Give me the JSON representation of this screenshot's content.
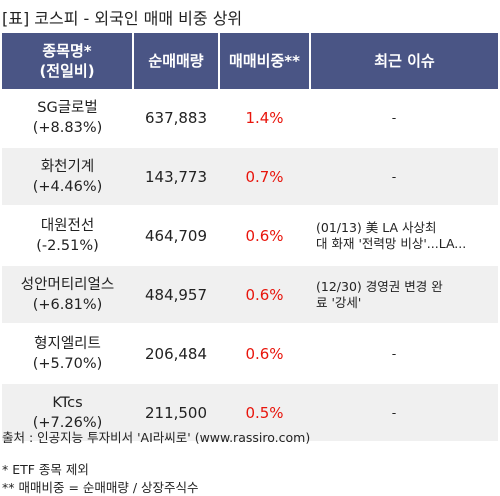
{
  "title": "[표] 코스피 - 외국인 매매 비중 상위",
  "headers": {
    "name_line1": "종목명*",
    "name_line2": "(전일비)",
    "qty": "순매매량",
    "ratio": "매매비중**",
    "issue": "최근 이슈"
  },
  "rows": [
    {
      "name": "SG글로벌",
      "change": "(+8.83%)",
      "qty": "637,883",
      "ratio": "1.4%",
      "issue_line1": "-",
      "issue_line2": ""
    },
    {
      "name": "화천기계",
      "change": "(+4.46%)",
      "qty": "143,773",
      "ratio": "0.7%",
      "issue_line1": "-",
      "issue_line2": ""
    },
    {
      "name": "대원전선",
      "change": "(-2.51%)",
      "qty": "464,709",
      "ratio": "0.6%",
      "issue_line1": "(01/13) 美 LA 사상최",
      "issue_line2": "대 화재 '전력망 비상'...LA..."
    },
    {
      "name": "성안머티리얼스",
      "change": "(+6.81%)",
      "qty": "484,957",
      "ratio": "0.6%",
      "issue_line1": "(12/30) 경영권 변경 완",
      "issue_line2": "료 '강세'"
    },
    {
      "name": "형지엘리트",
      "change": "(+5.70%)",
      "qty": "206,484",
      "ratio": "0.6%",
      "issue_line1": "-",
      "issue_line2": ""
    },
    {
      "name": "KTcs",
      "change": "(+7.26%)",
      "qty": "211,500",
      "ratio": "0.5%",
      "issue_line1": "-",
      "issue_line2": ""
    }
  ],
  "source": "출처 : 인공지능 투자비서 'AI라씨로' (www.rassiro.com)",
  "notes": [
    "* ETF 종목 제외",
    "** 매매비중 = 순매매량 / 상장주식수"
  ]
}
